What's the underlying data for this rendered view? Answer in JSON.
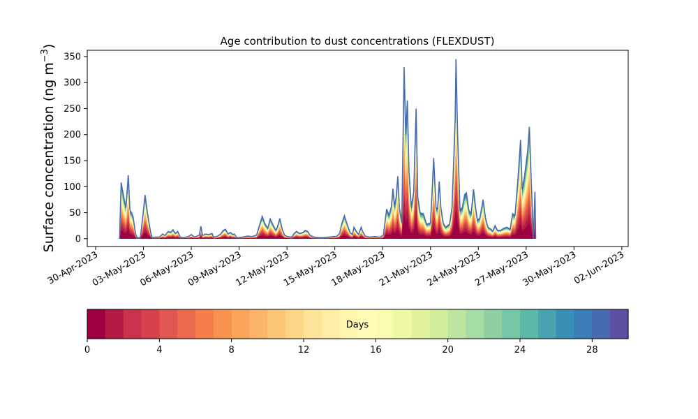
{
  "chart_data": {
    "type": "area",
    "title": "Age contribution to dust concentrations (FLEXDUST)",
    "ylabel": "Surface concentration (ng m",
    "ylabel_sup": "−3",
    "ylabel_close": ")",
    "ylim": [
      -15,
      362
    ],
    "yticks": [
      0,
      50,
      100,
      150,
      200,
      250,
      300,
      350
    ],
    "x_start": "2023-04-29T12:00",
    "xlim_days": [
      0,
      33.4
    ],
    "xticks": [
      {
        "label": "30-Apr-2023",
        "day": 0
      },
      {
        "label": "03-May-2023",
        "day": 3
      },
      {
        "label": "06-May-2023",
        "day": 6
      },
      {
        "label": "09-May-2023",
        "day": 9
      },
      {
        "label": "12-May-2023",
        "day": 12
      },
      {
        "label": "15-May-2023",
        "day": 15
      },
      {
        "label": "18-May-2023",
        "day": 18
      },
      {
        "label": "21-May-2023",
        "day": 21
      },
      {
        "label": "24-May-2023",
        "day": 24
      },
      {
        "label": "27-May-2023",
        "day": 27
      },
      {
        "label": "30-May-2023",
        "day": 30
      },
      {
        "label": "02-Jun-2023",
        "day": 33
      }
    ],
    "total_series": [
      [
        1.5,
        0
      ],
      [
        1.6,
        108
      ],
      [
        1.75,
        82
      ],
      [
        1.9,
        60
      ],
      [
        2.05,
        122
      ],
      [
        2.15,
        55
      ],
      [
        2.25,
        50
      ],
      [
        2.35,
        42
      ],
      [
        2.5,
        10
      ],
      [
        2.6,
        2
      ],
      [
        2.8,
        2
      ],
      [
        2.95,
        40
      ],
      [
        3.1,
        84
      ],
      [
        3.25,
        50
      ],
      [
        3.45,
        12
      ],
      [
        3.55,
        2
      ],
      [
        3.7,
        3
      ],
      [
        4.0,
        3
      ],
      [
        4.2,
        9
      ],
      [
        4.35,
        6
      ],
      [
        4.55,
        14
      ],
      [
        4.7,
        12
      ],
      [
        4.85,
        17
      ],
      [
        5.0,
        10
      ],
      [
        5.15,
        14
      ],
      [
        5.3,
        3
      ],
      [
        5.5,
        2
      ],
      [
        5.8,
        4
      ],
      [
        6.0,
        8
      ],
      [
        6.2,
        3
      ],
      [
        6.5,
        7
      ],
      [
        6.6,
        24
      ],
      [
        6.7,
        6
      ],
      [
        6.9,
        9
      ],
      [
        7.1,
        8
      ],
      [
        7.3,
        10
      ],
      [
        7.4,
        3
      ],
      [
        7.6,
        4
      ],
      [
        7.85,
        9
      ],
      [
        8.0,
        16
      ],
      [
        8.15,
        18
      ],
      [
        8.3,
        9
      ],
      [
        8.45,
        12
      ],
      [
        8.6,
        8
      ],
      [
        8.7,
        9
      ],
      [
        8.85,
        2
      ],
      [
        9.2,
        3
      ],
      [
        9.5,
        5
      ],
      [
        9.8,
        4
      ],
      [
        10.1,
        7
      ],
      [
        10.3,
        28
      ],
      [
        10.45,
        43
      ],
      [
        10.6,
        30
      ],
      [
        10.8,
        20
      ],
      [
        10.95,
        38
      ],
      [
        11.1,
        28
      ],
      [
        11.3,
        16
      ],
      [
        11.4,
        22
      ],
      [
        11.55,
        39
      ],
      [
        11.7,
        18
      ],
      [
        11.85,
        7
      ],
      [
        12.0,
        4
      ],
      [
        12.3,
        3
      ],
      [
        12.45,
        10
      ],
      [
        12.6,
        14
      ],
      [
        12.8,
        10
      ],
      [
        13.0,
        12
      ],
      [
        13.15,
        16
      ],
      [
        13.3,
        14
      ],
      [
        13.45,
        6
      ],
      [
        13.7,
        3
      ],
      [
        14.0,
        2
      ],
      [
        14.3,
        2
      ],
      [
        14.6,
        3
      ],
      [
        14.9,
        4
      ],
      [
        15.1,
        4
      ],
      [
        15.3,
        10
      ],
      [
        15.45,
        30
      ],
      [
        15.6,
        44
      ],
      [
        15.75,
        30
      ],
      [
        15.95,
        12
      ],
      [
        16.1,
        8
      ],
      [
        16.2,
        22
      ],
      [
        16.35,
        14
      ],
      [
        16.5,
        8
      ],
      [
        16.65,
        22
      ],
      [
        16.75,
        14
      ],
      [
        16.9,
        5
      ],
      [
        17.2,
        3
      ],
      [
        17.5,
        4
      ],
      [
        17.85,
        3
      ],
      [
        18.05,
        7
      ],
      [
        18.25,
        57
      ],
      [
        18.4,
        45
      ],
      [
        18.55,
        62
      ],
      [
        18.65,
        96
      ],
      [
        18.75,
        62
      ],
      [
        18.85,
        80
      ],
      [
        18.95,
        120
      ],
      [
        19.05,
        60
      ],
      [
        19.2,
        30
      ],
      [
        19.35,
        330
      ],
      [
        19.45,
        200
      ],
      [
        19.55,
        266
      ],
      [
        19.65,
        130
      ],
      [
        19.8,
        60
      ],
      [
        19.95,
        90
      ],
      [
        20.1,
        250
      ],
      [
        20.2,
        80
      ],
      [
        20.35,
        50
      ],
      [
        20.55,
        48
      ],
      [
        20.75,
        28
      ],
      [
        21.0,
        30
      ],
      [
        21.1,
        88
      ],
      [
        21.2,
        155
      ],
      [
        21.35,
        60
      ],
      [
        21.45,
        58
      ],
      [
        21.55,
        110
      ],
      [
        21.65,
        60
      ],
      [
        21.8,
        30
      ],
      [
        21.95,
        22
      ],
      [
        22.2,
        28
      ],
      [
        22.35,
        60
      ],
      [
        22.55,
        230
      ],
      [
        22.6,
        345
      ],
      [
        22.7,
        200
      ],
      [
        22.85,
        55
      ],
      [
        23.0,
        60
      ],
      [
        23.15,
        85
      ],
      [
        23.25,
        88
      ],
      [
        23.4,
        55
      ],
      [
        23.55,
        48
      ],
      [
        23.7,
        95
      ],
      [
        23.85,
        55
      ],
      [
        23.95,
        35
      ],
      [
        24.1,
        40
      ],
      [
        24.3,
        75
      ],
      [
        24.45,
        40
      ],
      [
        24.6,
        22
      ],
      [
        24.8,
        18
      ],
      [
        24.9,
        14
      ],
      [
        25.05,
        25
      ],
      [
        25.2,
        16
      ],
      [
        25.4,
        16
      ],
      [
        25.6,
        20
      ],
      [
        25.8,
        22
      ],
      [
        26.0,
        18
      ],
      [
        26.15,
        48
      ],
      [
        26.3,
        45
      ],
      [
        26.5,
        120
      ],
      [
        26.65,
        190
      ],
      [
        26.75,
        95
      ],
      [
        26.9,
        120
      ],
      [
        27.1,
        170
      ],
      [
        27.2,
        215
      ],
      [
        27.3,
        130
      ],
      [
        27.45,
        0
      ],
      [
        27.55,
        90
      ],
      [
        27.6,
        0
      ]
    ],
    "colorbar": {
      "label": "Days",
      "min": 0,
      "max": 30,
      "n_bins": 30,
      "ticks": [
        0,
        4,
        8,
        12,
        16,
        20,
        24,
        28
      ],
      "colormap": "Spectral",
      "colors": [
        "#9e0142",
        "#b31b46",
        "#c8324a",
        "#d6414e",
        "#e05651",
        "#ea6a4d",
        "#f57e4a",
        "#f7934f",
        "#faa45c",
        "#fbb669",
        "#fdc677",
        "#fdd587",
        "#fee398",
        "#feeda4",
        "#fff6b0",
        "#fffcb9",
        "#f7fcb1",
        "#eef8a5",
        "#e1f39a",
        "#d1ed9b",
        "#bde59f",
        "#a5dba4",
        "#8ed0a4",
        "#75c6a4",
        "#5eb8a7",
        "#4aa3b0",
        "#3990b7",
        "#3a7db7",
        "#4a6ab0",
        "#5e4fa2"
      ]
    }
  }
}
